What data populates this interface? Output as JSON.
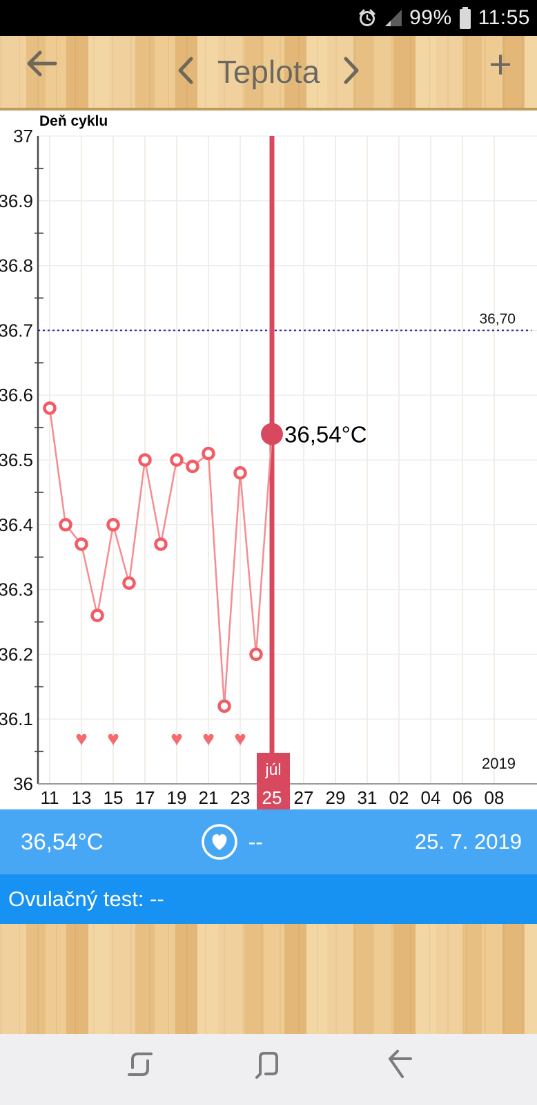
{
  "status_bar": {
    "time": "11:55",
    "battery_pct": "99%",
    "icons": [
      "alarm-icon",
      "signal-icon",
      "battery-icon"
    ]
  },
  "header": {
    "title": "Teplota",
    "back_label": "back-arrow",
    "prev_label": "chevron-left",
    "next_label": "chevron-right",
    "add_label": "+"
  },
  "chart": {
    "chart_data": {
      "type": "line",
      "title": "Deň cyklu",
      "xlabel": "Deň cyklu",
      "ylabel": "",
      "ylim": [
        36,
        37
      ],
      "grid": true,
      "x_days": [
        11,
        12,
        13,
        14,
        15,
        16,
        17,
        18,
        19,
        20,
        21,
        22,
        23,
        24,
        25
      ],
      "values": [
        36.58,
        36.4,
        36.37,
        36.26,
        36.4,
        36.31,
        36.5,
        36.37,
        36.5,
        36.49,
        36.51,
        36.12,
        36.48,
        36.2,
        36.54
      ],
      "x_tick_labels": [
        "11",
        "13",
        "15",
        "17",
        "19",
        "21",
        "23",
        "25",
        "27",
        "29",
        "31",
        "02",
        "04",
        "06",
        "08"
      ],
      "y_tick_values": [
        36,
        36.1,
        36.2,
        36.3,
        36.4,
        36.5,
        36.6,
        36.7,
        36.8,
        36.9,
        37
      ],
      "y_tick_labels": [
        "36",
        "36.1",
        "36.2",
        "36.3",
        "36.4",
        "36.5",
        "36.6",
        "36.7",
        "36.8",
        "36.9",
        "37"
      ],
      "reference_line": {
        "value": 36.7,
        "label": "36,70",
        "color": "#2929a3"
      },
      "selected": {
        "day": 25,
        "value": 36.54,
        "label": "36,54°C",
        "month_label": "júl",
        "day_label": "25"
      },
      "hearts_days": [
        13,
        15,
        19,
        21,
        23
      ],
      "hearts_value": 36.07,
      "year_label": "2019",
      "colors": {
        "line": "#f78c91",
        "point_stroke": "#f25c64",
        "selected": "#d8485e",
        "heart": "#f5696f"
      }
    }
  },
  "info_bar": {
    "temperature": "36,54°C",
    "heart_icon": "heart-circle-icon",
    "heart_value": "--",
    "date": "25. 7. 2019"
  },
  "test_bar": {
    "label": "Ovulačný test: --"
  },
  "nav_bar": {
    "icons": [
      "recent-apps-icon",
      "home-icon",
      "back-icon"
    ]
  }
}
